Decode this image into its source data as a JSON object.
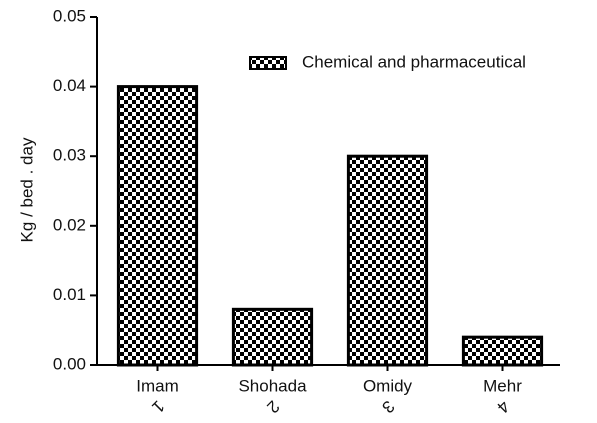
{
  "chart_data": {
    "type": "bar",
    "ylabel": "Kg / bed . day",
    "categories": [
      "Imam",
      "Shohada",
      "Omidy",
      "Mehr"
    ],
    "category_numbers": [
      "1",
      "2",
      "3",
      "4"
    ],
    "series": [
      {
        "name": "Chemical and pharmaceutical",
        "color": "#000000",
        "values": [
          0.04,
          0.008,
          0.03,
          0.004
        ]
      }
    ],
    "ylim": [
      0,
      0.05
    ],
    "yticks": [
      {
        "value": 0,
        "label": "0.00"
      },
      {
        "value": 0.01,
        "label": "0.01"
      },
      {
        "value": 0.02,
        "label": "0.02"
      },
      {
        "value": 0.03,
        "label": "0.03"
      },
      {
        "value": 0.04,
        "label": "0.04"
      },
      {
        "value": 0.05,
        "label": "0.05"
      }
    ],
    "legend": "top-right"
  }
}
